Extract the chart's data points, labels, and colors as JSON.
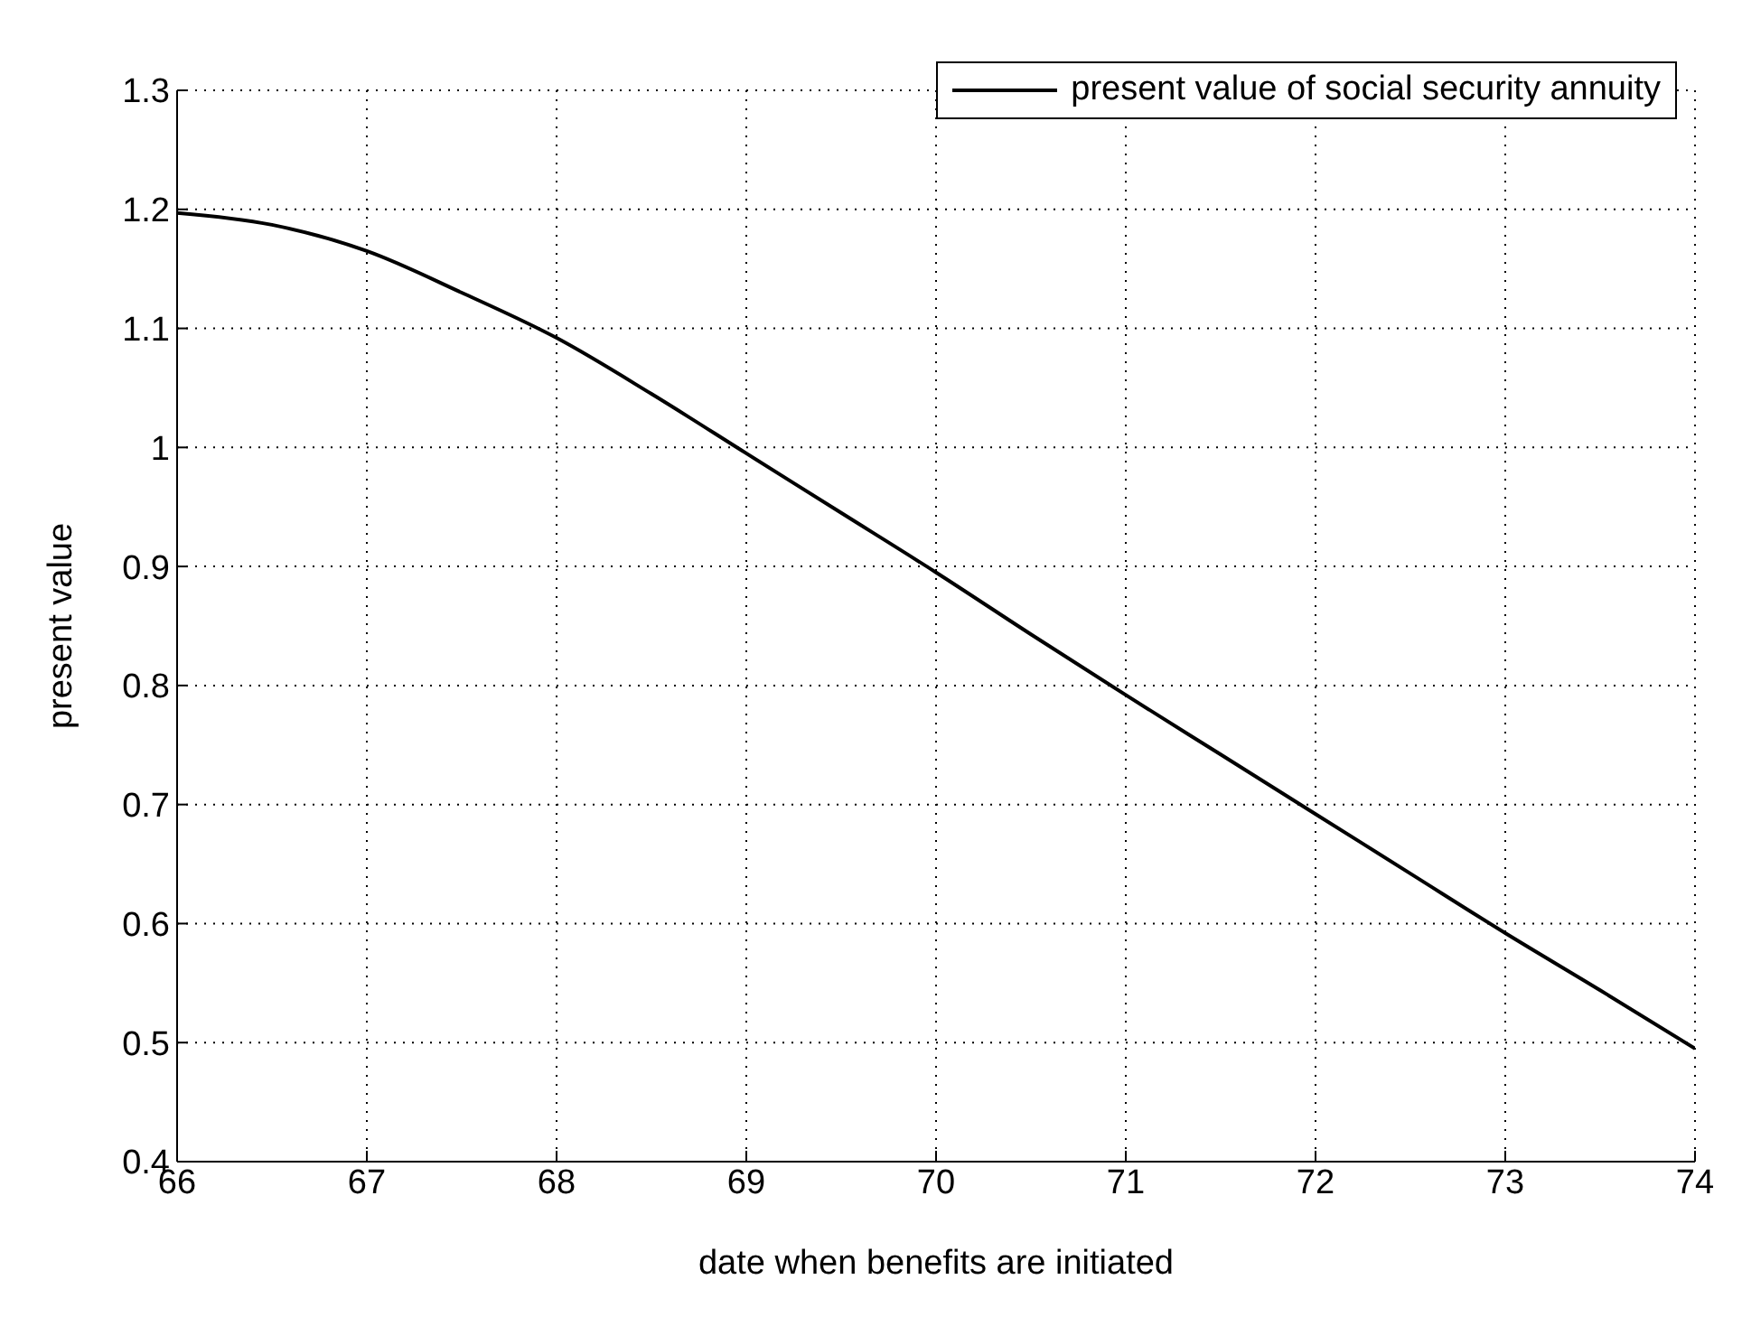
{
  "chart_data": {
    "type": "line",
    "xlabel": "date when benefits are initiated",
    "ylabel": "present value",
    "x": [
      66,
      66.5,
      67,
      67.5,
      68,
      68.5,
      69,
      69.5,
      70,
      70.5,
      71,
      71.5,
      72,
      72.5,
      73,
      73.5,
      74
    ],
    "series": [
      {
        "name": "present value of social security annuity",
        "color": "#000000",
        "values": [
          1.197,
          1.187,
          1.165,
          1.13,
          1.092,
          1.045,
          0.995,
          0.945,
          0.895,
          0.843,
          0.792,
          0.742,
          0.692,
          0.642,
          0.592,
          0.544,
          0.495
        ]
      }
    ],
    "xlim": [
      66,
      74
    ],
    "xticks": [
      66,
      67,
      68,
      69,
      70,
      71,
      72,
      73,
      74
    ],
    "ylim": [
      0.4,
      1.3
    ],
    "yticks": [
      0.4,
      0.5,
      0.6,
      0.7,
      0.8,
      0.9,
      1,
      1.1,
      1.2,
      1.3
    ],
    "grid": true,
    "legend": "top right",
    "marker": "none",
    "line_style": "solid"
  }
}
